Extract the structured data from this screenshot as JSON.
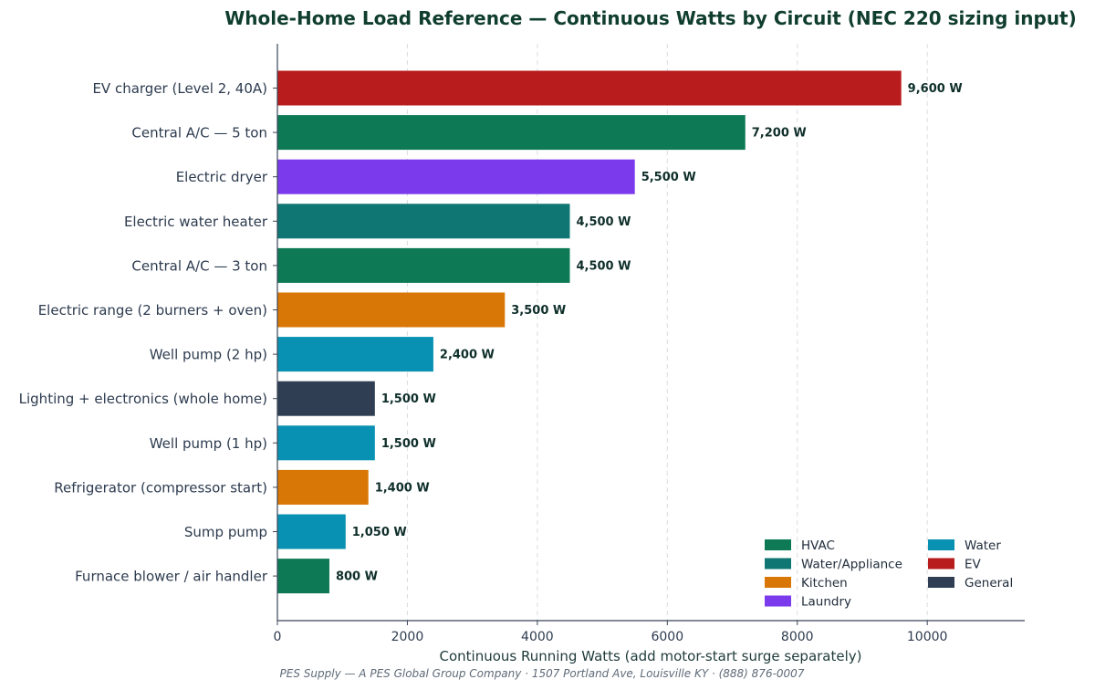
{
  "chart_data": {
    "type": "bar",
    "orientation": "horizontal",
    "title": "Whole-Home Load Reference — Continuous Watts by Circuit (NEC 220 sizing input)",
    "xlabel": "Continuous Running Watts (add motor-start surge separately)",
    "ylabel": "",
    "xlim": [
      0,
      11500
    ],
    "xticks": [
      0,
      2000,
      4000,
      6000,
      8000,
      10000
    ],
    "grid": "x-dashed",
    "legend_position": "bottom-right",
    "categories": [
      "EV charger (Level 2, 40A)",
      "Central A/C — 5 ton",
      "Electric dryer",
      "Electric water heater",
      "Central A/C — 3 ton",
      "Electric range (2 burners + oven)",
      "Well pump (2 hp)",
      "Lighting + electronics (whole home)",
      "Well pump (1 hp)",
      "Refrigerator (compressor start)",
      "Sump pump",
      "Furnace blower / air handler"
    ],
    "values": [
      9600,
      7200,
      5500,
      4500,
      4500,
      3500,
      2400,
      1500,
      1500,
      1400,
      1050,
      800
    ],
    "value_labels": [
      "9,600 W",
      "7,200 W",
      "5,500 W",
      "4,500 W",
      "4,500 W",
      "3,500 W",
      "2,400 W",
      "1,500 W",
      "1,500 W",
      "1,400 W",
      "1,050 W",
      "800 W"
    ],
    "groups": [
      "EV",
      "HVAC",
      "Laundry",
      "Water/Appliance",
      "HVAC",
      "Kitchen",
      "Water",
      "General",
      "Water",
      "Kitchen",
      "Water",
      "HVAC"
    ],
    "legend": [
      {
        "name": "HVAC",
        "color": "#0e7a55"
      },
      {
        "name": "Water/Appliance",
        "color": "#0f7673"
      },
      {
        "name": "Kitchen",
        "color": "#d97706"
      },
      {
        "name": "Laundry",
        "color": "#7c3aed"
      },
      {
        "name": "Water",
        "color": "#0891b2"
      },
      {
        "name": "EV",
        "color": "#b91c1c"
      },
      {
        "name": "General",
        "color": "#2f3e52"
      }
    ]
  },
  "footer": "PES Supply — A PES Global Group Company · 1507 Portland Ave, Louisville KY · (888) 876-0007"
}
